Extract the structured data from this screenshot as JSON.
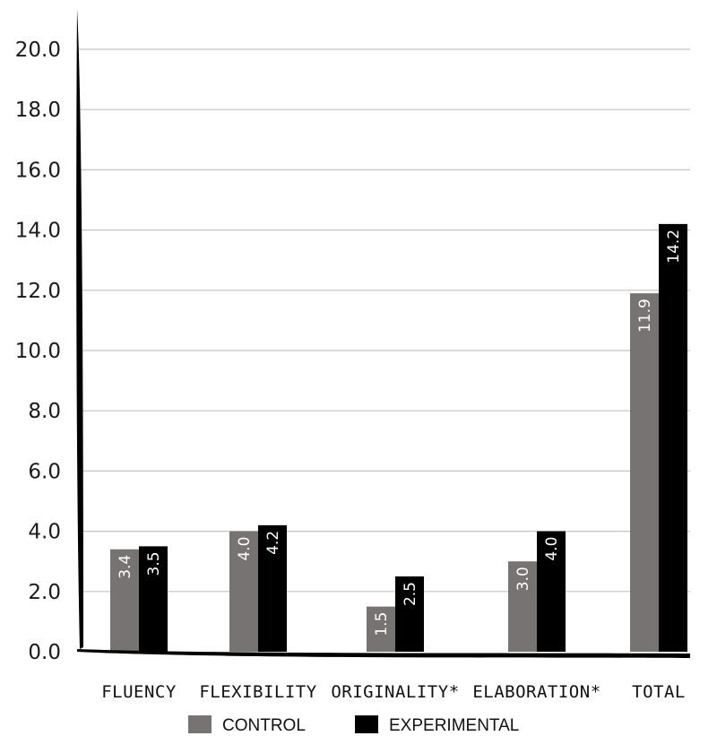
{
  "chart_data": {
    "type": "bar",
    "categories": [
      "FLUENCY",
      "FLEXIBILITY",
      "ORIGINALITY*",
      "ELABORATION*",
      "TOTAL"
    ],
    "series": [
      {
        "name": "CONTROL",
        "color": "#787373",
        "values": [
          3.4,
          4.0,
          1.5,
          3.0,
          11.9
        ],
        "labels": [
          "3.4",
          "4.0",
          "1.5",
          "3.0",
          "11.9"
        ]
      },
      {
        "name": "EXPERIMENTAL",
        "color": "#000000",
        "values": [
          3.5,
          4.2,
          2.5,
          4.0,
          14.2
        ],
        "labels": [
          "3.5",
          "4.2",
          "2.5",
          "4.0",
          "14.2"
        ]
      }
    ],
    "yticks": [
      "0.0",
      "2.0",
      "4.0",
      "6.0",
      "8.0",
      "10.0",
      "12.0",
      "14.0",
      "16.0",
      "18.0",
      "20.0"
    ],
    "ylim": [
      0,
      20
    ],
    "grid": true,
    "legend_position": "bottom-center",
    "title": "",
    "xlabel": "",
    "ylabel": ""
  }
}
